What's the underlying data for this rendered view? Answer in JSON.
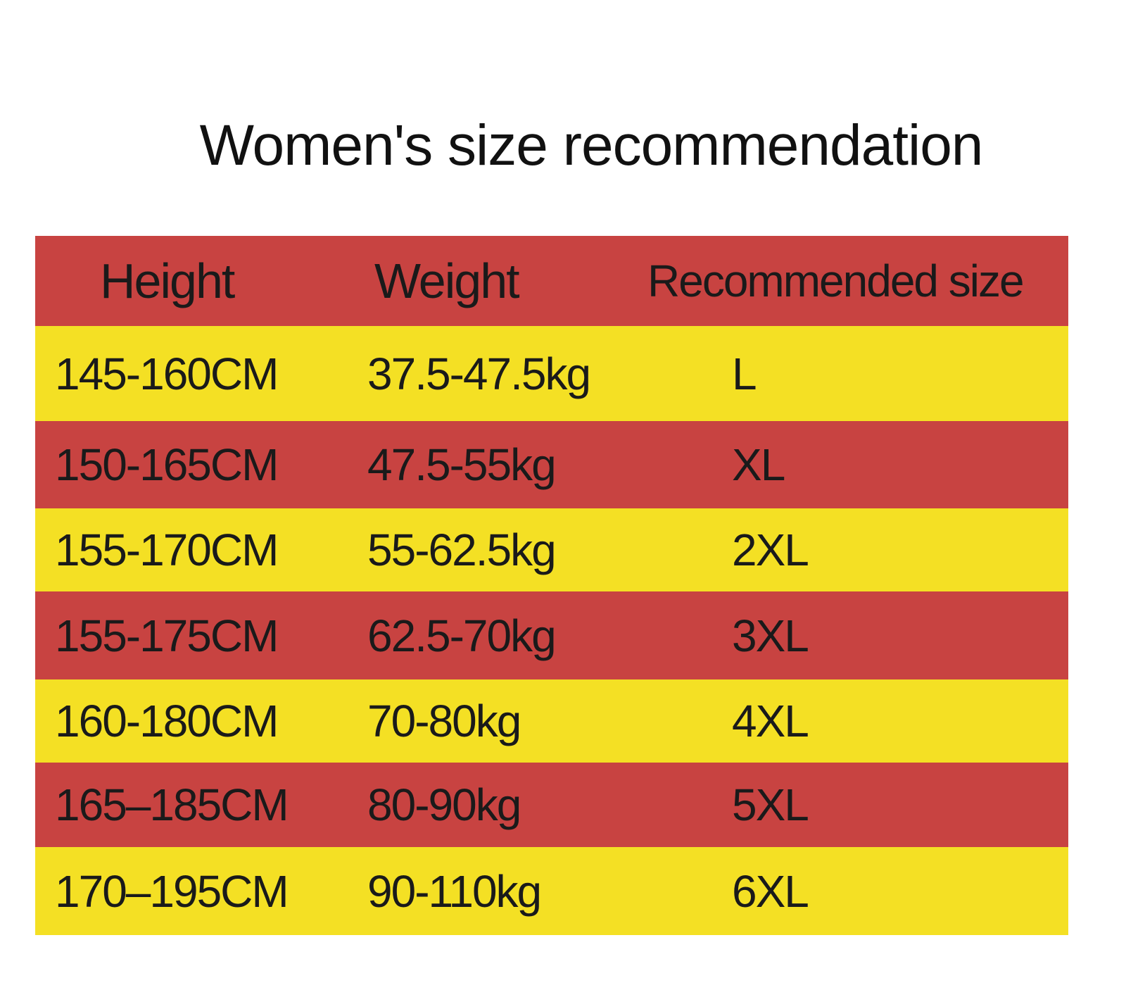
{
  "title": "Women's size recommendation",
  "table": {
    "header": [
      "Height",
      "Weight",
      "Recommended size"
    ],
    "rows": [
      [
        "145-160CM",
        "37.5-47.5kg",
        "L"
      ],
      [
        "150-165CM",
        "47.5-55kg",
        "XL"
      ],
      [
        "155-170CM",
        "55-62.5kg",
        "2XL"
      ],
      [
        "155-175CM",
        "62.5-70kg",
        "3XL"
      ],
      [
        "160-180CM",
        "70-80kg",
        "4XL"
      ],
      [
        "165–185CM",
        "80-90kg",
        "5XL"
      ],
      [
        "170–195CM",
        "90-110kg",
        "6XL"
      ]
    ]
  }
}
